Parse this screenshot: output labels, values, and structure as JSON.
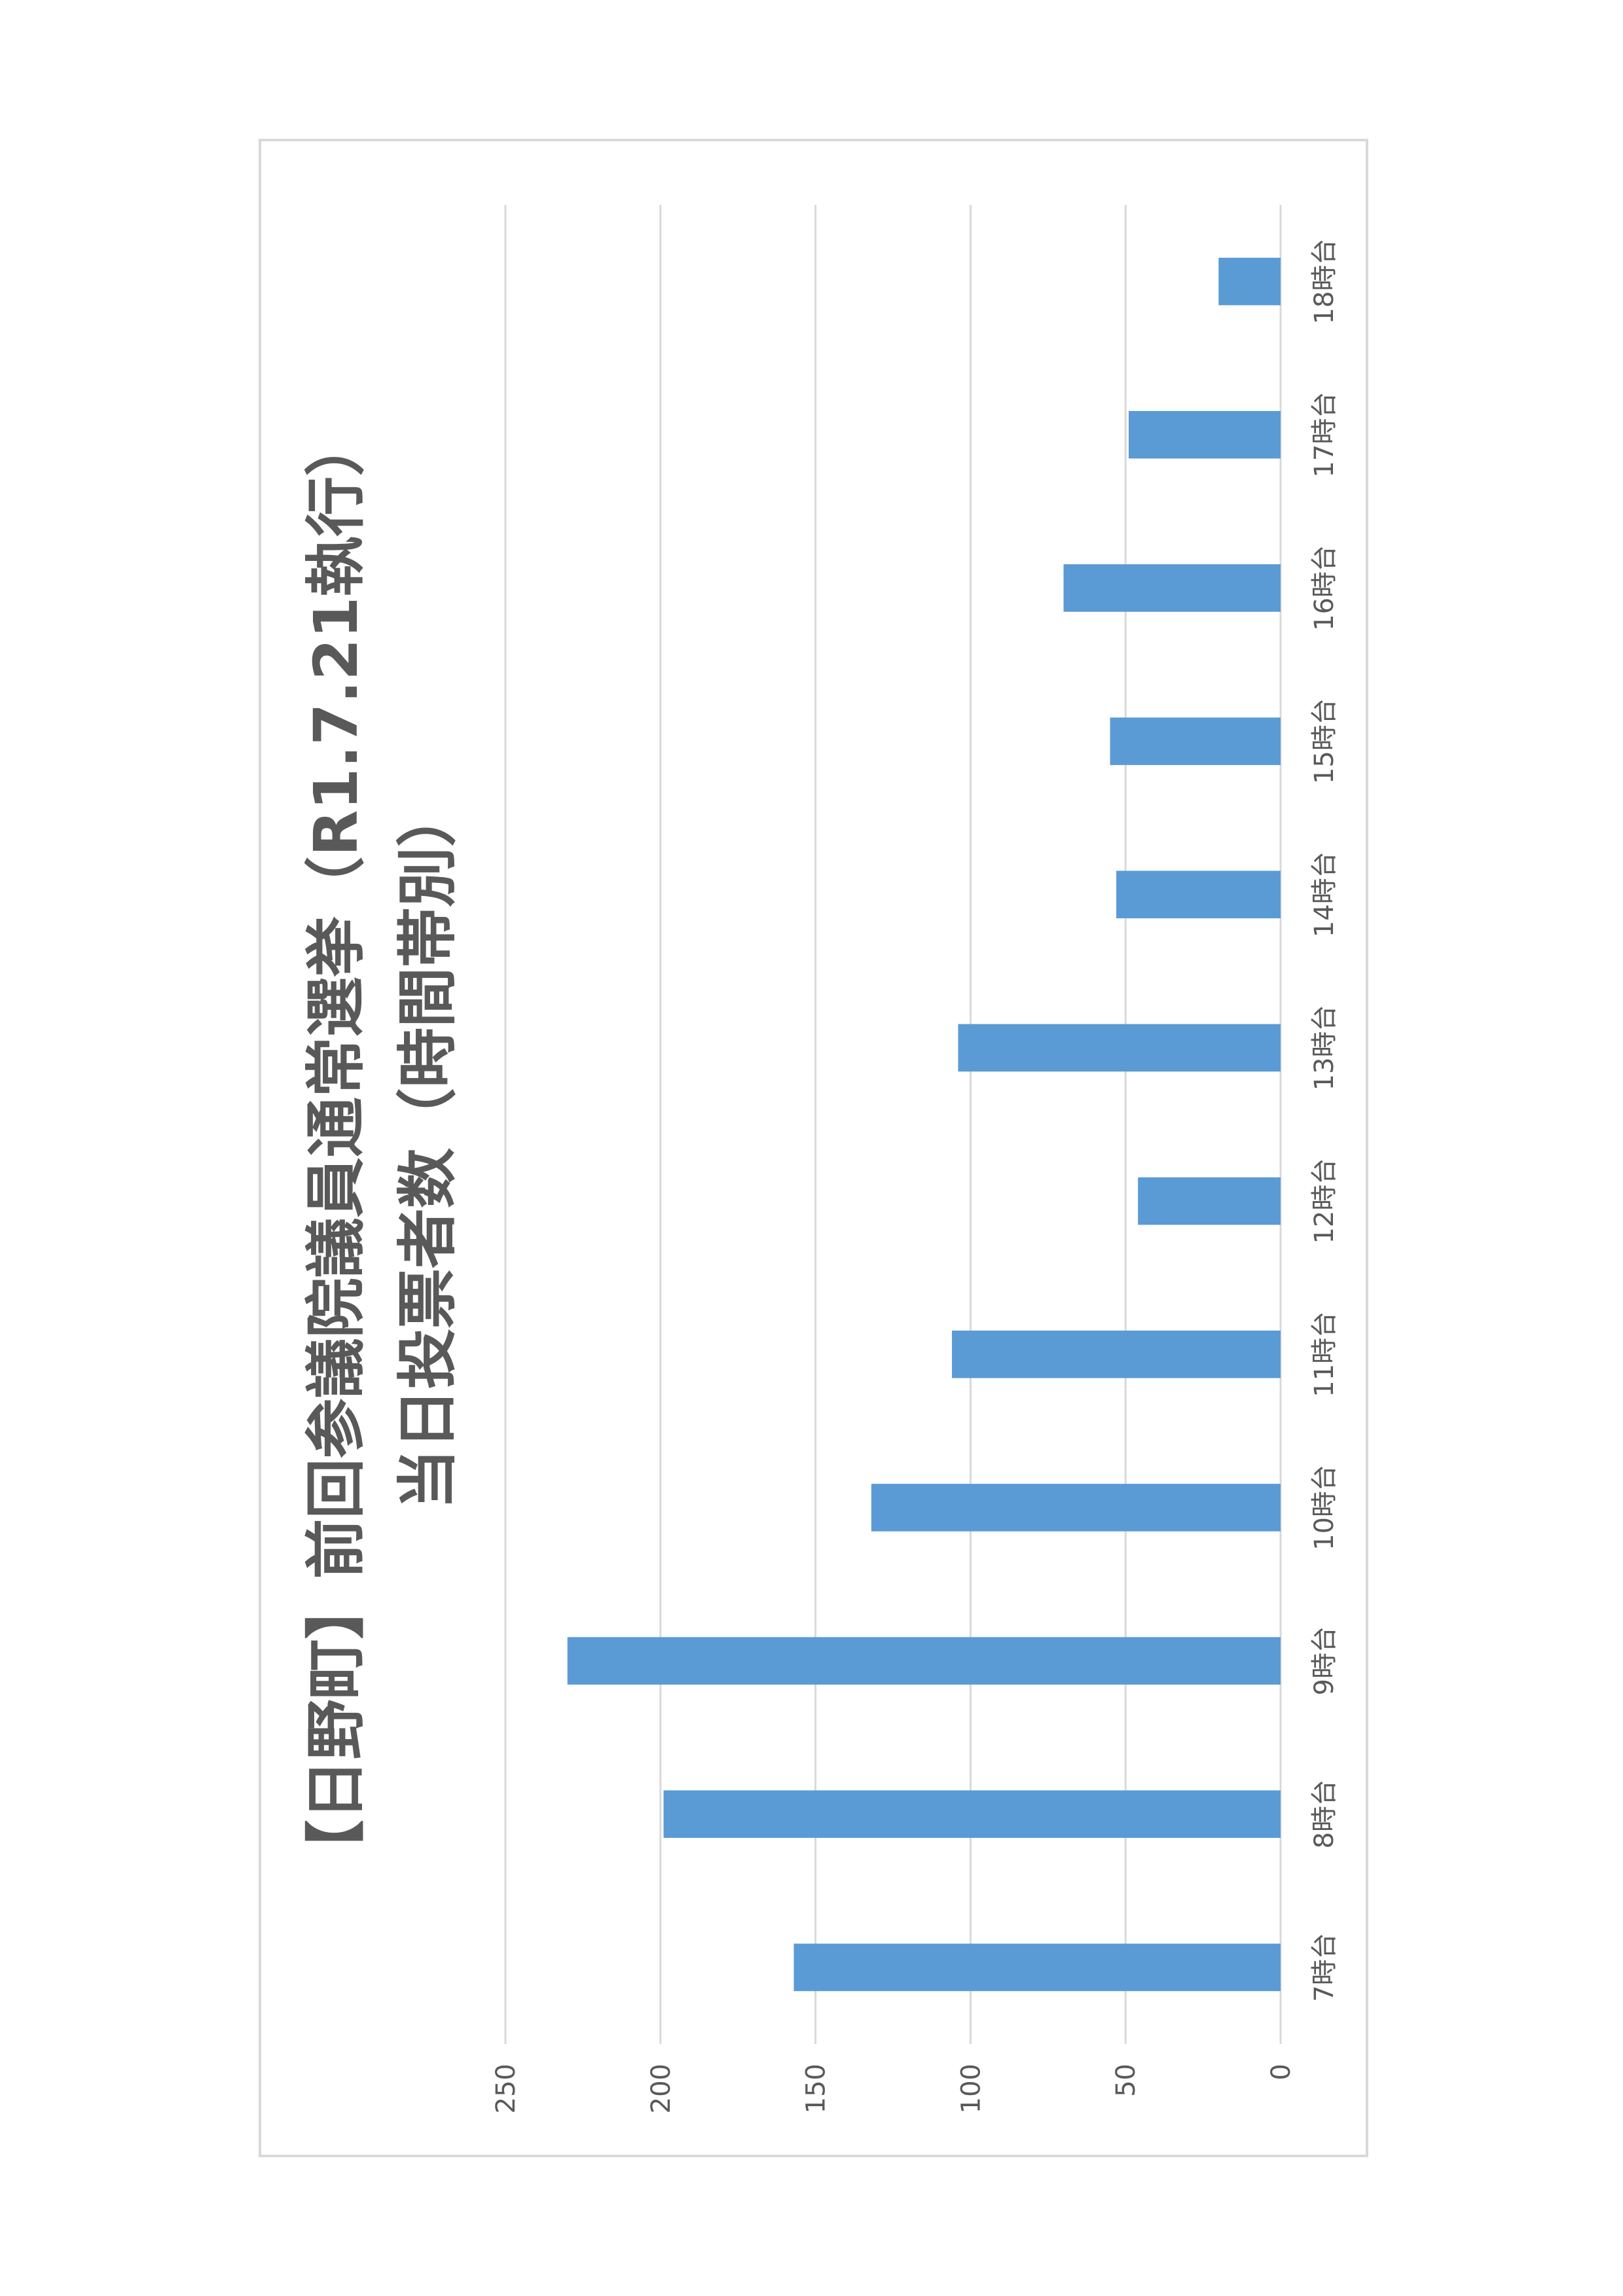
{
  "chart_data": {
    "type": "bar",
    "orientation": "horizontal",
    "title_lines": [
      "【日野町】前回参議院議員通常選挙（R1.7.21執行）",
      "当日投票者数（時間帯別）"
    ],
    "categories": [
      "7時台",
      "8時台",
      "9時台",
      "10時台",
      "11時台",
      "12時台",
      "13時台",
      "14時台",
      "15時台",
      "16時台",
      "17時台",
      "18時台"
    ],
    "values": [
      157,
      199,
      230,
      132,
      106,
      46,
      104,
      53,
      55,
      70,
      49,
      20
    ],
    "xlim": [
      0,
      250
    ],
    "x_ticks": [
      0,
      50,
      100,
      150,
      200,
      250
    ],
    "grid": true,
    "legend": "none",
    "colors": {
      "bar": "#5b9bd5",
      "grid": "#d9d9d9",
      "text": "#595959",
      "border": "#d9d9d9"
    }
  }
}
